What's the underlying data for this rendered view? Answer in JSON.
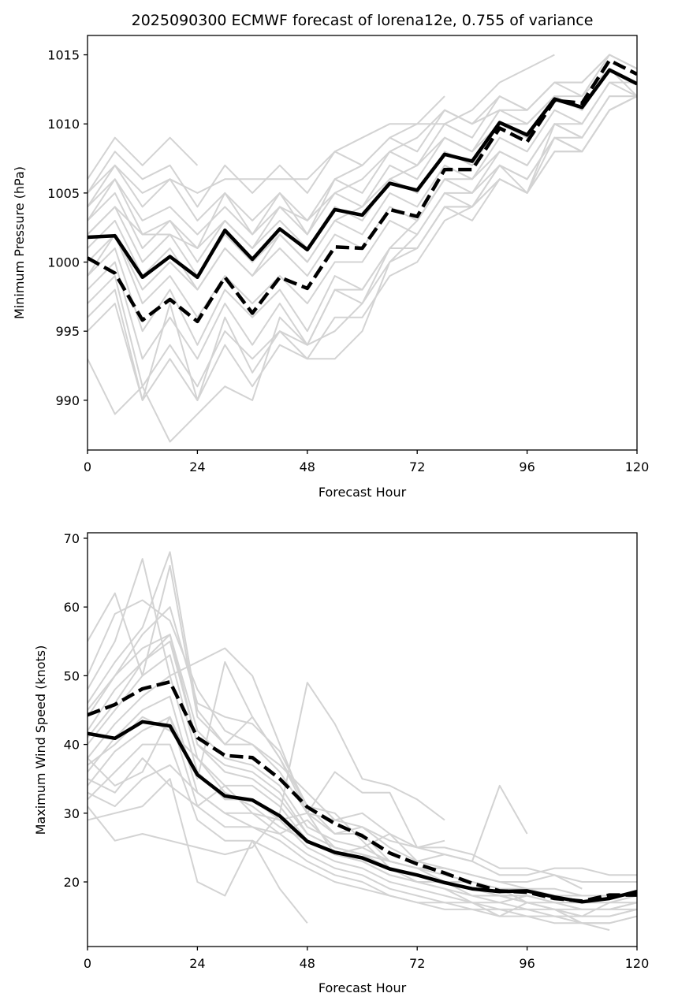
{
  "chart_data": [
    {
      "type": "line",
      "title": "2025090300 ECMWF forecast of lorena12e, 0.755 of variance",
      "xlabel": "Forecast Hour",
      "ylabel": "Minimum Pressure (hPa)",
      "xlim": [
        0,
        120
      ],
      "ylim": [
        986.4,
        1016.4
      ],
      "xticks": [
        0,
        24,
        48,
        72,
        96,
        120
      ],
      "yticks": [
        990,
        995,
        1000,
        1005,
        1010,
        1015
      ],
      "grid": false,
      "x": [
        0,
        6,
        12,
        18,
        24,
        30,
        36,
        42,
        48,
        54,
        60,
        66,
        72,
        78,
        84,
        90,
        96,
        102,
        108,
        114,
        120
      ],
      "series": [
        {
          "name": "ensemble-mean",
          "style": "solid",
          "color": "#000000",
          "values": [
            1001.8,
            1001.9,
            998.9,
            1000.4,
            998.9,
            1002.3,
            1000.2,
            1002.4,
            1000.9,
            1003.8,
            1003.4,
            1005.7,
            1005.2,
            1007.8,
            1007.3,
            1010.1,
            1009.2,
            1011.8,
            1011.2,
            1013.9,
            1012.9
          ]
        },
        {
          "name": "principal-component",
          "style": "dashed",
          "color": "#000000",
          "values": [
            1000.3,
            999.2,
            995.8,
            997.3,
            995.7,
            998.9,
            996.3,
            998.9,
            998.1,
            1001.1,
            1001.0,
            1003.8,
            1003.3,
            1006.7,
            1006.7,
            1009.7,
            1008.7,
            1011.7,
            1011.5,
            1014.6,
            1013.6
          ]
        }
      ],
      "members": [
        [
          1005,
          1007,
          1004,
          1006,
          1003,
          1005,
          1003,
          1005,
          1003,
          1006,
          1005,
          1008,
          1007,
          1010,
          1009,
          1012,
          1011,
          1013,
          1012,
          1015,
          1014
        ],
        [
          1004,
          1006,
          1003,
          1004,
          1002,
          1004,
          1002,
          1004,
          1002,
          1005,
          1004,
          1007,
          1006,
          1009,
          1008,
          1011,
          1010,
          1012,
          1011,
          1014,
          1013
        ],
        [
          1003,
          1005,
          1001,
          1003,
          1000,
          1003,
          1001,
          1003,
          1001,
          1004,
          1003,
          1006,
          1005,
          1008,
          1007,
          1010,
          1009,
          1012,
          1011,
          1014,
          1012
        ],
        [
          1002,
          1004,
          1000,
          1002,
          999,
          1002,
          1000,
          1002,
          1000,
          1003,
          1002,
          1005,
          1004,
          1007,
          1006,
          1009,
          1008,
          1011,
          1010,
          1013,
          1012
        ],
        [
          1006,
          1009,
          1007,
          1009,
          1007,
          null,
          null,
          null,
          null,
          null,
          null,
          null,
          null,
          null,
          null,
          null,
          null,
          null,
          null,
          null,
          null
        ],
        [
          1005,
          1008,
          1006,
          1007,
          1004,
          1007,
          1005,
          1007,
          1005,
          1008,
          1007,
          1009,
          1008,
          1011,
          1010,
          1012,
          1011,
          1013,
          1013,
          1015,
          1014
        ],
        [
          1001,
          1003,
          999,
          1001,
          998,
          1001,
          999,
          1001,
          999,
          1002,
          1001,
          1004,
          1003,
          1006,
          1005,
          1008,
          1007,
          1010,
          1009,
          1012,
          1012
        ],
        [
          1000,
          1002,
          997,
          999,
          996,
          999,
          997,
          999,
          997,
          1000,
          1000,
          1003,
          1002,
          1005,
          1004,
          1007,
          1006,
          1009,
          1008,
          1011,
          1012
        ],
        [
          999,
          1001,
          995,
          998,
          994,
          998,
          996,
          998,
          995,
          999,
          998,
          1001,
          1001,
          1004,
          1003,
          1006,
          1005,
          1008,
          1008,
          1011,
          1012
        ],
        [
          998,
          1000,
          993,
          996,
          993,
          997,
          994,
          997,
          994,
          998,
          997,
          1000,
          1001,
          1004,
          1004,
          1006,
          1005,
          1008,
          1008,
          1011,
          1012
        ],
        [
          997,
          999,
          991,
          994,
          991,
          995,
          993,
          995,
          993,
          996,
          996,
          999,
          1000,
          1003,
          1004,
          1006,
          1005,
          1009,
          1009,
          1012,
          1012
        ],
        [
          995,
          997,
          990,
          993,
          990,
          994,
          991,
          994,
          993,
          993,
          995,
          1000,
          1002,
          1005,
          1005,
          1007,
          1006,
          1009,
          1008,
          null,
          null
        ],
        [
          993,
          989,
          991,
          987,
          989,
          991,
          990,
          996,
          994,
          995,
          997,
          1001,
          1003,
          1006,
          1006,
          1008,
          1007,
          1010,
          1009,
          null,
          null
        ],
        [
          996,
          998,
          990,
          997,
          990,
          996,
          992,
          995,
          994,
          998,
          998,
          1001,
          1001,
          1004,
          1004,
          1007,
          1005,
          1010,
          1010,
          1013,
          1013
        ],
        [
          1004,
          1007,
          1005,
          1006,
          1005,
          1006,
          1006,
          1006,
          1006,
          1008,
          1009,
          1010,
          1010,
          1010,
          1011,
          1013,
          1014,
          1015,
          null,
          null,
          null
        ],
        [
          1002,
          1004,
          1002,
          1002,
          1001,
          1005,
          1002,
          1005,
          1002,
          1006,
          1007,
          1009,
          1010,
          1012,
          null,
          null,
          null,
          null,
          null,
          null,
          null
        ],
        [
          999,
          1002,
          998,
          1000,
          998,
          1001,
          999,
          1002,
          1000,
          1003,
          1004,
          1006,
          1007,
          1009,
          1008,
          1010,
          1010,
          1012,
          1012,
          1014,
          1013
        ],
        [
          1003,
          1006,
          1002,
          1003,
          1001,
          1003,
          1001,
          1004,
          1003,
          1005,
          1006,
          1008,
          1009,
          1011,
          1010,
          1011,
          1011,
          1013,
          1013,
          1015,
          1014
        ]
      ]
    },
    {
      "type": "line",
      "title": "",
      "xlabel": "Forecast Hour",
      "ylabel": "Maximum Wind Speed (knots)",
      "xlim": [
        0,
        120
      ],
      "ylim": [
        10.6,
        70.8
      ],
      "xticks": [
        0,
        24,
        48,
        72,
        96,
        120
      ],
      "yticks": [
        20,
        30,
        40,
        50,
        60,
        70
      ],
      "grid": false,
      "x": [
        0,
        6,
        12,
        18,
        24,
        30,
        36,
        42,
        48,
        54,
        60,
        66,
        72,
        78,
        84,
        90,
        96,
        102,
        108,
        114,
        120
      ],
      "series": [
        {
          "name": "ensemble-mean",
          "style": "solid",
          "color": "#000000",
          "values": [
            41.6,
            40.9,
            43.3,
            42.7,
            35.6,
            32.5,
            31.9,
            29.6,
            25.9,
            24.3,
            23.5,
            21.9,
            21.0,
            19.9,
            19.0,
            18.6,
            18.7,
            17.8,
            17.1,
            17.6,
            18.6
          ]
        },
        {
          "name": "principal-component",
          "style": "dashed",
          "color": "#000000",
          "values": [
            44.3,
            45.8,
            48.1,
            49.1,
            41.0,
            38.4,
            38.1,
            35.0,
            30.9,
            28.5,
            26.7,
            24.2,
            22.6,
            21.3,
            19.8,
            18.7,
            18.5,
            17.6,
            17.2,
            18.1,
            18.1
          ]
        }
      ],
      "members": [
        [
          55,
          62,
          50,
          66,
          44,
          40,
          44,
          38,
          31,
          27,
          27,
          23,
          22,
          20,
          19,
          18,
          17,
          17,
          16,
          16,
          17
        ],
        [
          50,
          59,
          61,
          58,
          48,
          42,
          40,
          37,
          33,
          29,
          28,
          26,
          25,
          25,
          24,
          22,
          22,
          21,
          20,
          20,
          20
        ],
        [
          48,
          55,
          67,
          50,
          52,
          54,
          50,
          40,
          30,
          29,
          30,
          27,
          25,
          24,
          23,
          21,
          21,
          22,
          22,
          21,
          21
        ],
        [
          46,
          52,
          57,
          68,
          45,
          40,
          40,
          36,
          30,
          27,
          28,
          25,
          23,
          22,
          21,
          20,
          19,
          19,
          18,
          18,
          18
        ],
        [
          44,
          50,
          54,
          56,
          42,
          38,
          37,
          34,
          28,
          26,
          25,
          23,
          22,
          21,
          20,
          19,
          19,
          18,
          18,
          18,
          18
        ],
        [
          42,
          48,
          52,
          56,
          40,
          36,
          35,
          32,
          27,
          25,
          24,
          22,
          21,
          20,
          19,
          18,
          18,
          17,
          17,
          17,
          17
        ],
        [
          40,
          45,
          50,
          53,
          38,
          34,
          34,
          31,
          26,
          24,
          23,
          21,
          20,
          19,
          18,
          18,
          17,
          16,
          16,
          16,
          17
        ],
        [
          38,
          43,
          47,
          50,
          36,
          32,
          32,
          29,
          25,
          23,
          22,
          20,
          19,
          18,
          17,
          17,
          16,
          16,
          15,
          15,
          16
        ],
        [
          36,
          41,
          45,
          47,
          33,
          30,
          30,
          27,
          24,
          22,
          21,
          19,
          18,
          17,
          17,
          16,
          16,
          15,
          15,
          15,
          16
        ],
        [
          34,
          39,
          42,
          44,
          31,
          28,
          28,
          26,
          23,
          21,
          20,
          18,
          17,
          17,
          16,
          16,
          15,
          15,
          14,
          14,
          15
        ],
        [
          32,
          36,
          40,
          40,
          29,
          26,
          26,
          24,
          22,
          20,
          19,
          18,
          17,
          16,
          16,
          15,
          15,
          14,
          14,
          14,
          15
        ],
        [
          29,
          30,
          31,
          35,
          20,
          18,
          26,
          19,
          14,
          null,
          null,
          null,
          null,
          null,
          null,
          null,
          null,
          null,
          null,
          null,
          null
        ],
        [
          31,
          26,
          27,
          26,
          25,
          24,
          25,
          30,
          49,
          43,
          35,
          34,
          32,
          29,
          null,
          null,
          null,
          null,
          null,
          null,
          null
        ],
        [
          35,
          33,
          38,
          34,
          31,
          34,
          30,
          29,
          30,
          24,
          25,
          27,
          23,
          24,
          23,
          34,
          27,
          null,
          null,
          null,
          null
        ],
        [
          38,
          34,
          36,
          44,
          35,
          52,
          44,
          38,
          30,
          36,
          33,
          33,
          25,
          26,
          null,
          null,
          null,
          null,
          null,
          null,
          null
        ],
        [
          33,
          31,
          35,
          37,
          33,
          30,
          28,
          27,
          29,
          25,
          24,
          23,
          22,
          22,
          21,
          20,
          20,
          21,
          19,
          null,
          null
        ],
        [
          37,
          40,
          44,
          42,
          38,
          33,
          31,
          28,
          26,
          24,
          23,
          21,
          20,
          20,
          20,
          19,
          17,
          16,
          14,
          13,
          null
        ],
        [
          45,
          50,
          56,
          60,
          46,
          44,
          43,
          39,
          31,
          30,
          26,
          22,
          20,
          19,
          17,
          15,
          17,
          16,
          15,
          17,
          18
        ],
        [
          41,
          46,
          52,
          55,
          40,
          37,
          36,
          33,
          27,
          25,
          24,
          22,
          21,
          20,
          18,
          17,
          18,
          17,
          16,
          16,
          16
        ]
      ]
    }
  ]
}
